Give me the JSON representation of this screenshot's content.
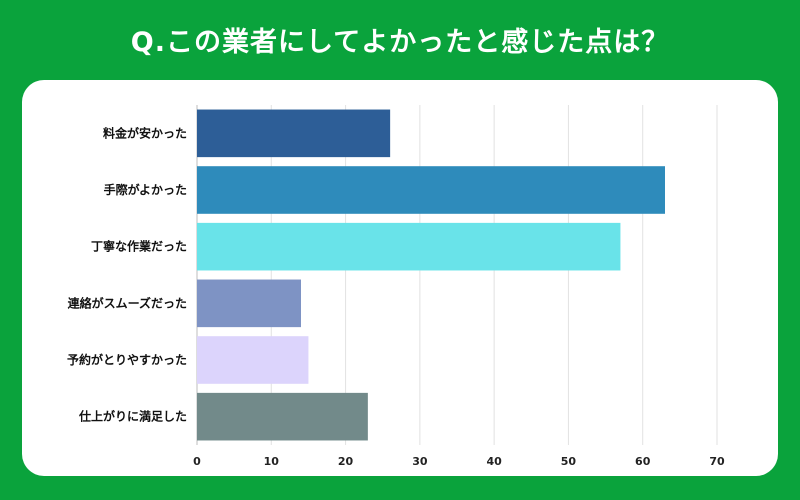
{
  "header": {
    "title": "Q.この業者にしてよかったと感じた点は？"
  },
  "chart_data": {
    "type": "bar",
    "orientation": "horizontal",
    "title": "Q.この業者にしてよかったと感じた点は？",
    "xlabel": "",
    "ylabel": "",
    "xlim": [
      0,
      70
    ],
    "ticks": [
      0,
      10,
      20,
      30,
      40,
      50,
      60,
      70
    ],
    "categories": [
      "料金が安かった",
      "手際がよかった",
      "丁寧な作業だった",
      "連絡がスムーズだった",
      "予約がとりやすかった",
      "仕上がりに満足した"
    ],
    "values": [
      26,
      63,
      57,
      14,
      15,
      23
    ],
    "colors": [
      "#2d5e97",
      "#2e8bbb",
      "#69e3e9",
      "#7e93c4",
      "#dcd4fc",
      "#728a8a"
    ],
    "grid": true
  }
}
